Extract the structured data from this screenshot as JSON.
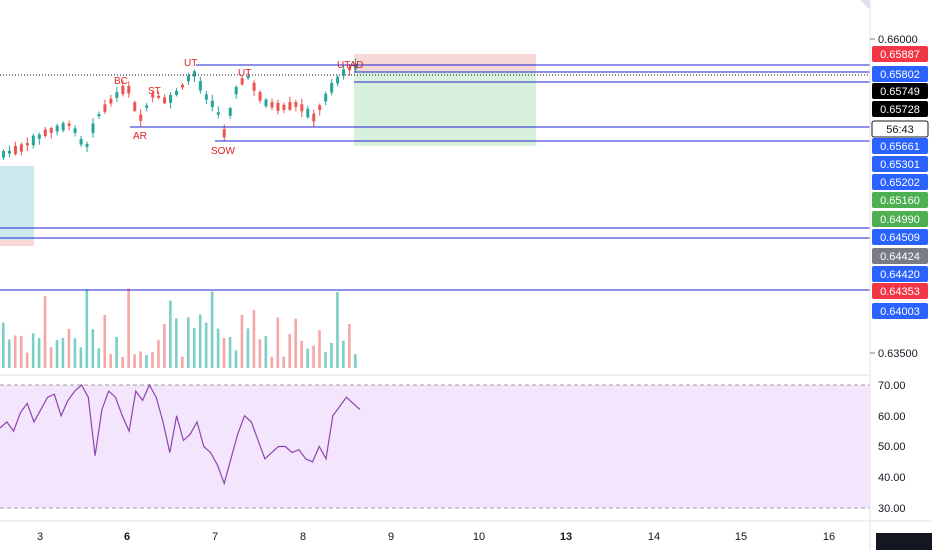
{
  "price_scale": {
    "ticks": [
      "0.66000",
      "0.63500"
    ],
    "badges": [
      {
        "value": "0.65887",
        "bg": "#f23645",
        "fg": "#ffffff"
      },
      {
        "value": "0.65802",
        "bg": "#2962ff",
        "fg": "#ffffff"
      },
      {
        "value": "0.65749",
        "bg": "#000000",
        "fg": "#ffffff"
      },
      {
        "value": "0.65728",
        "bg": "#000000",
        "fg": "#ffffff"
      },
      {
        "value": "56:43",
        "bg": "#ffffff",
        "fg": "#131722"
      },
      {
        "value": "0.65661",
        "bg": "#2962ff",
        "fg": "#ffffff"
      },
      {
        "value": "0.65301",
        "bg": "#2962ff",
        "fg": "#ffffff"
      },
      {
        "value": "0.65202",
        "bg": "#2962ff",
        "fg": "#ffffff"
      },
      {
        "value": "0.65160",
        "bg": "#4caf50",
        "fg": "#ffffff"
      },
      {
        "value": "0.64990",
        "bg": "#4caf50",
        "fg": "#ffffff"
      },
      {
        "value": "0.64509",
        "bg": "#2962ff",
        "fg": "#ffffff"
      },
      {
        "value": "0.64424",
        "bg": "#787b86",
        "fg": "#ffffff"
      },
      {
        "value": "0.64420",
        "bg": "#2962ff",
        "fg": "#ffffff"
      },
      {
        "value": "0.64353",
        "bg": "#f23645",
        "fg": "#ffffff"
      },
      {
        "value": "0.64003",
        "bg": "#2962ff",
        "fg": "#ffffff"
      }
    ]
  },
  "rsi_scale": {
    "ticks": [
      "70.00",
      "60.00",
      "50.00",
      "40.00",
      "30.00"
    ],
    "upper": 70,
    "lower": 30
  },
  "time_axis": {
    "labels": [
      "3",
      "6",
      "7",
      "8",
      "9",
      "10",
      "13",
      "14",
      "15",
      "16"
    ]
  },
  "annotations": [
    "BC",
    "ST",
    "UT",
    "AR",
    "UT",
    "SOW",
    "UTAD"
  ],
  "colors": {
    "up": "#26a69a",
    "down": "#ef5350",
    "level_line": "#1e22d4",
    "rsi_line": "#8e44ad",
    "rsi_band": "#f3e5fc",
    "target_zone": "#d8f0dc",
    "stop_zone": "#f8d7d9",
    "teal_zone": "#cde8ec"
  },
  "chart_data": {
    "type": "candlestick",
    "price_range": [
      0.6335,
      0.6615
    ],
    "rsi": [
      56,
      58,
      55,
      61,
      64,
      58,
      62,
      66,
      67,
      60,
      65,
      68,
      70,
      66,
      47,
      62,
      68,
      66,
      60,
      55,
      68,
      65,
      70,
      66,
      58,
      48,
      60,
      52,
      54,
      58,
      50,
      48,
      44,
      38,
      46,
      54,
      60,
      58,
      52,
      46,
      48,
      50,
      50,
      48,
      49,
      46,
      45,
      50,
      46,
      60,
      63,
      66,
      64,
      62
    ]
  }
}
